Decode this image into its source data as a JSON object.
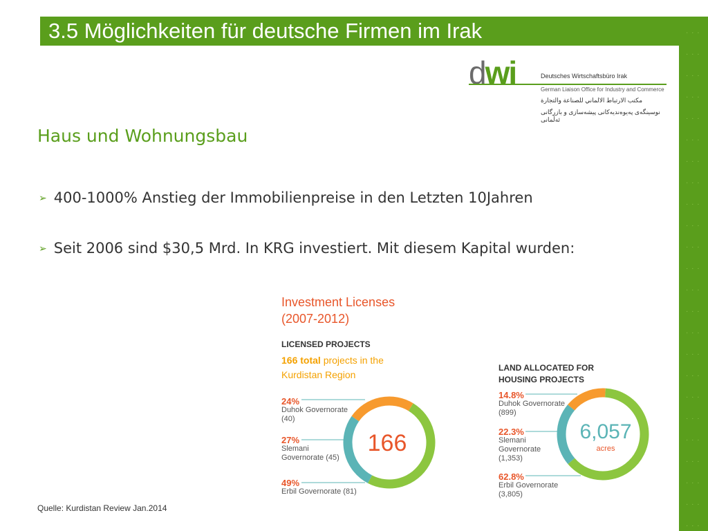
{
  "title": "3.5 Möglichkeiten für deutsche Firmen im Irak",
  "logo": {
    "wordmark_d": "d",
    "wordmark_wi": "wi",
    "line1": "Deutsches Wirtschaftsbüro Irak",
    "line2": "German Liaison Office for Industry and Commerce",
    "line3": "مكتب الارتباط الالماني للصناعة والتجارة",
    "line4": "نوسینگەی پەیوەندیەکانی پیشەسازی و بازرگانی ئەڵمانی"
  },
  "subtitle": "Haus und Wohnungsbau",
  "bullets": [
    "400-1000% Anstieg der Immobilienpreise in den Letzten 10Jahren",
    "Seit 2006 sind $30,5 Mrd. In KRG investiert. Mit diesem Kapital wurden:"
  ],
  "infographic": {
    "title_line1": "Investment Licenses",
    "title_line2": "(2007-2012)",
    "licensed_heading": "LICENSED PROJECTS",
    "licensed_total_bold": "166 total",
    "licensed_total_rest": " projects in the Kurdistan Region",
    "licensed_center": "166",
    "land_heading": "LAND ALLOCATED FOR HOUSING PROJECTS",
    "land_center": "6,057",
    "land_unit": "acres",
    "colors": {
      "orange": "#f79a2e",
      "teal": "#5bb4b6",
      "green": "#8cc63f",
      "label_red": "#e8562a"
    }
  },
  "chart_data": [
    {
      "type": "pie",
      "title": "LICENSED PROJECTS",
      "center_label": "166",
      "categories": [
        "Duhok Governorate",
        "Slemani Governorate",
        "Erbil Governorate"
      ],
      "values": [
        24,
        27,
        49
      ],
      "counts": [
        40,
        45,
        81
      ],
      "labels": [
        {
          "pct": "24%",
          "name": "Duhok Governorate",
          "count": "(40)"
        },
        {
          "pct": "27%",
          "name": "Slemani Governorate",
          "count": "(45)"
        },
        {
          "pct": "49%",
          "name": "Erbil Governorate",
          "count": "(81)"
        }
      ]
    },
    {
      "type": "pie",
      "title": "LAND ALLOCATED FOR HOUSING PROJECTS",
      "center_label": "6,057",
      "categories": [
        "Duhok Governorate",
        "Slemani Governorate",
        "Erbil Governorate"
      ],
      "values": [
        14.8,
        22.3,
        62.8
      ],
      "counts": [
        899,
        1353,
        3805
      ],
      "labels": [
        {
          "pct": "14.8%",
          "name": "Duhok Governorate",
          "count": "(899)"
        },
        {
          "pct": "22.3%",
          "name": "Slemani Governorate",
          "count": "(1,353)"
        },
        {
          "pct": "62.8%",
          "name": "Erbil Governorate",
          "count": "(3,805)"
        }
      ]
    }
  ],
  "source": "Quelle: Kurdistan Review Jan.2014"
}
